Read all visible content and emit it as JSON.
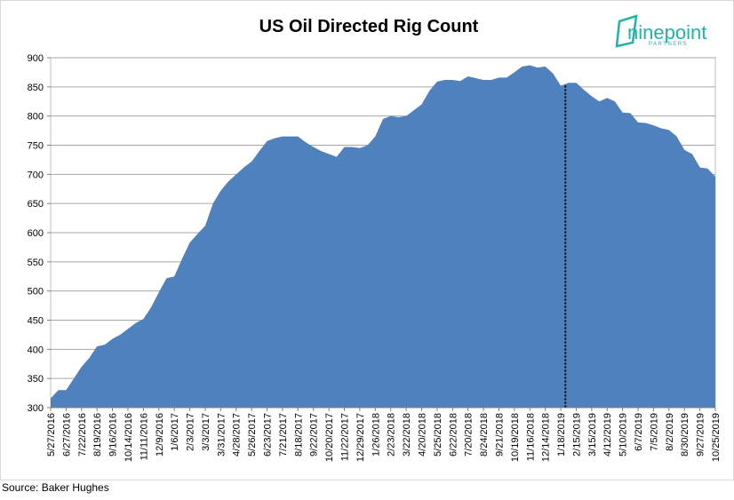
{
  "chart_data": {
    "type": "area",
    "title": "US Oil Directed Rig Count",
    "source": "Source: Baker Hughes",
    "categories": [
      "5/27/2016",
      null,
      "6/27/2016",
      null,
      "7/22/2016",
      null,
      "8/19/2016",
      null,
      "9/16/2016",
      null,
      "10/14/2016",
      null,
      "11/11/2016",
      null,
      "12/9/2016",
      null,
      "1/6/2017",
      null,
      "2/3/2017",
      null,
      "3/3/2017",
      null,
      "3/31/2017",
      null,
      "4/28/2017",
      null,
      "5/26/2017",
      null,
      "6/23/2017",
      null,
      "7/21/2017",
      null,
      "8/18/2017",
      null,
      "9/22/2017",
      null,
      "10/20/2017",
      null,
      "11/22/2017",
      null,
      "12/29/2017",
      null,
      "1/26/2018",
      null,
      "2/23/2018",
      null,
      "3/22/2018",
      null,
      "4/20/2018",
      null,
      "5/25/2018",
      null,
      "6/22/2018",
      null,
      "7/20/2018",
      null,
      "8/24/2018",
      null,
      "9/21/2018",
      null,
      "10/19/2018",
      null,
      "11/16/2018",
      null,
      "12/14/2018",
      null,
      "1/18/2019",
      null,
      "2/15/2019",
      null,
      "3/15/2019",
      null,
      "4/12/2019",
      null,
      "5/10/2019",
      null,
      "6/7/2019",
      null,
      "7/5/2019",
      null,
      "8/2/2019",
      null,
      "8/30/2019",
      null,
      "9/27/2019",
      null,
      "10/25/2019"
    ],
    "values": [
      316,
      330,
      330,
      350,
      370,
      385,
      405,
      408,
      418,
      425,
      435,
      445,
      452,
      472,
      498,
      522,
      525,
      555,
      583,
      598,
      612,
      650,
      672,
      688,
      700,
      712,
      722,
      740,
      757,
      762,
      765,
      765,
      765,
      755,
      747,
      740,
      735,
      730,
      747,
      747,
      745,
      750,
      765,
      795,
      800,
      798,
      800,
      810,
      820,
      843,
      859,
      862,
      862,
      860,
      868,
      865,
      862,
      862,
      866,
      866,
      875,
      885,
      887,
      883,
      885,
      873,
      852,
      857,
      857,
      845,
      834,
      825,
      831,
      825,
      806,
      805,
      789,
      788,
      784,
      779,
      776,
      765,
      742,
      735,
      712,
      710,
      696
    ],
    "color": "#4f81bd",
    "ylim": [
      300,
      900
    ],
    "yticks": [
      300,
      350,
      400,
      450,
      500,
      550,
      600,
      650,
      700,
      750,
      800,
      850,
      900
    ],
    "grid": true
  },
  "logo": {
    "name": "ninepoint",
    "tagline": "PARTNERS"
  }
}
